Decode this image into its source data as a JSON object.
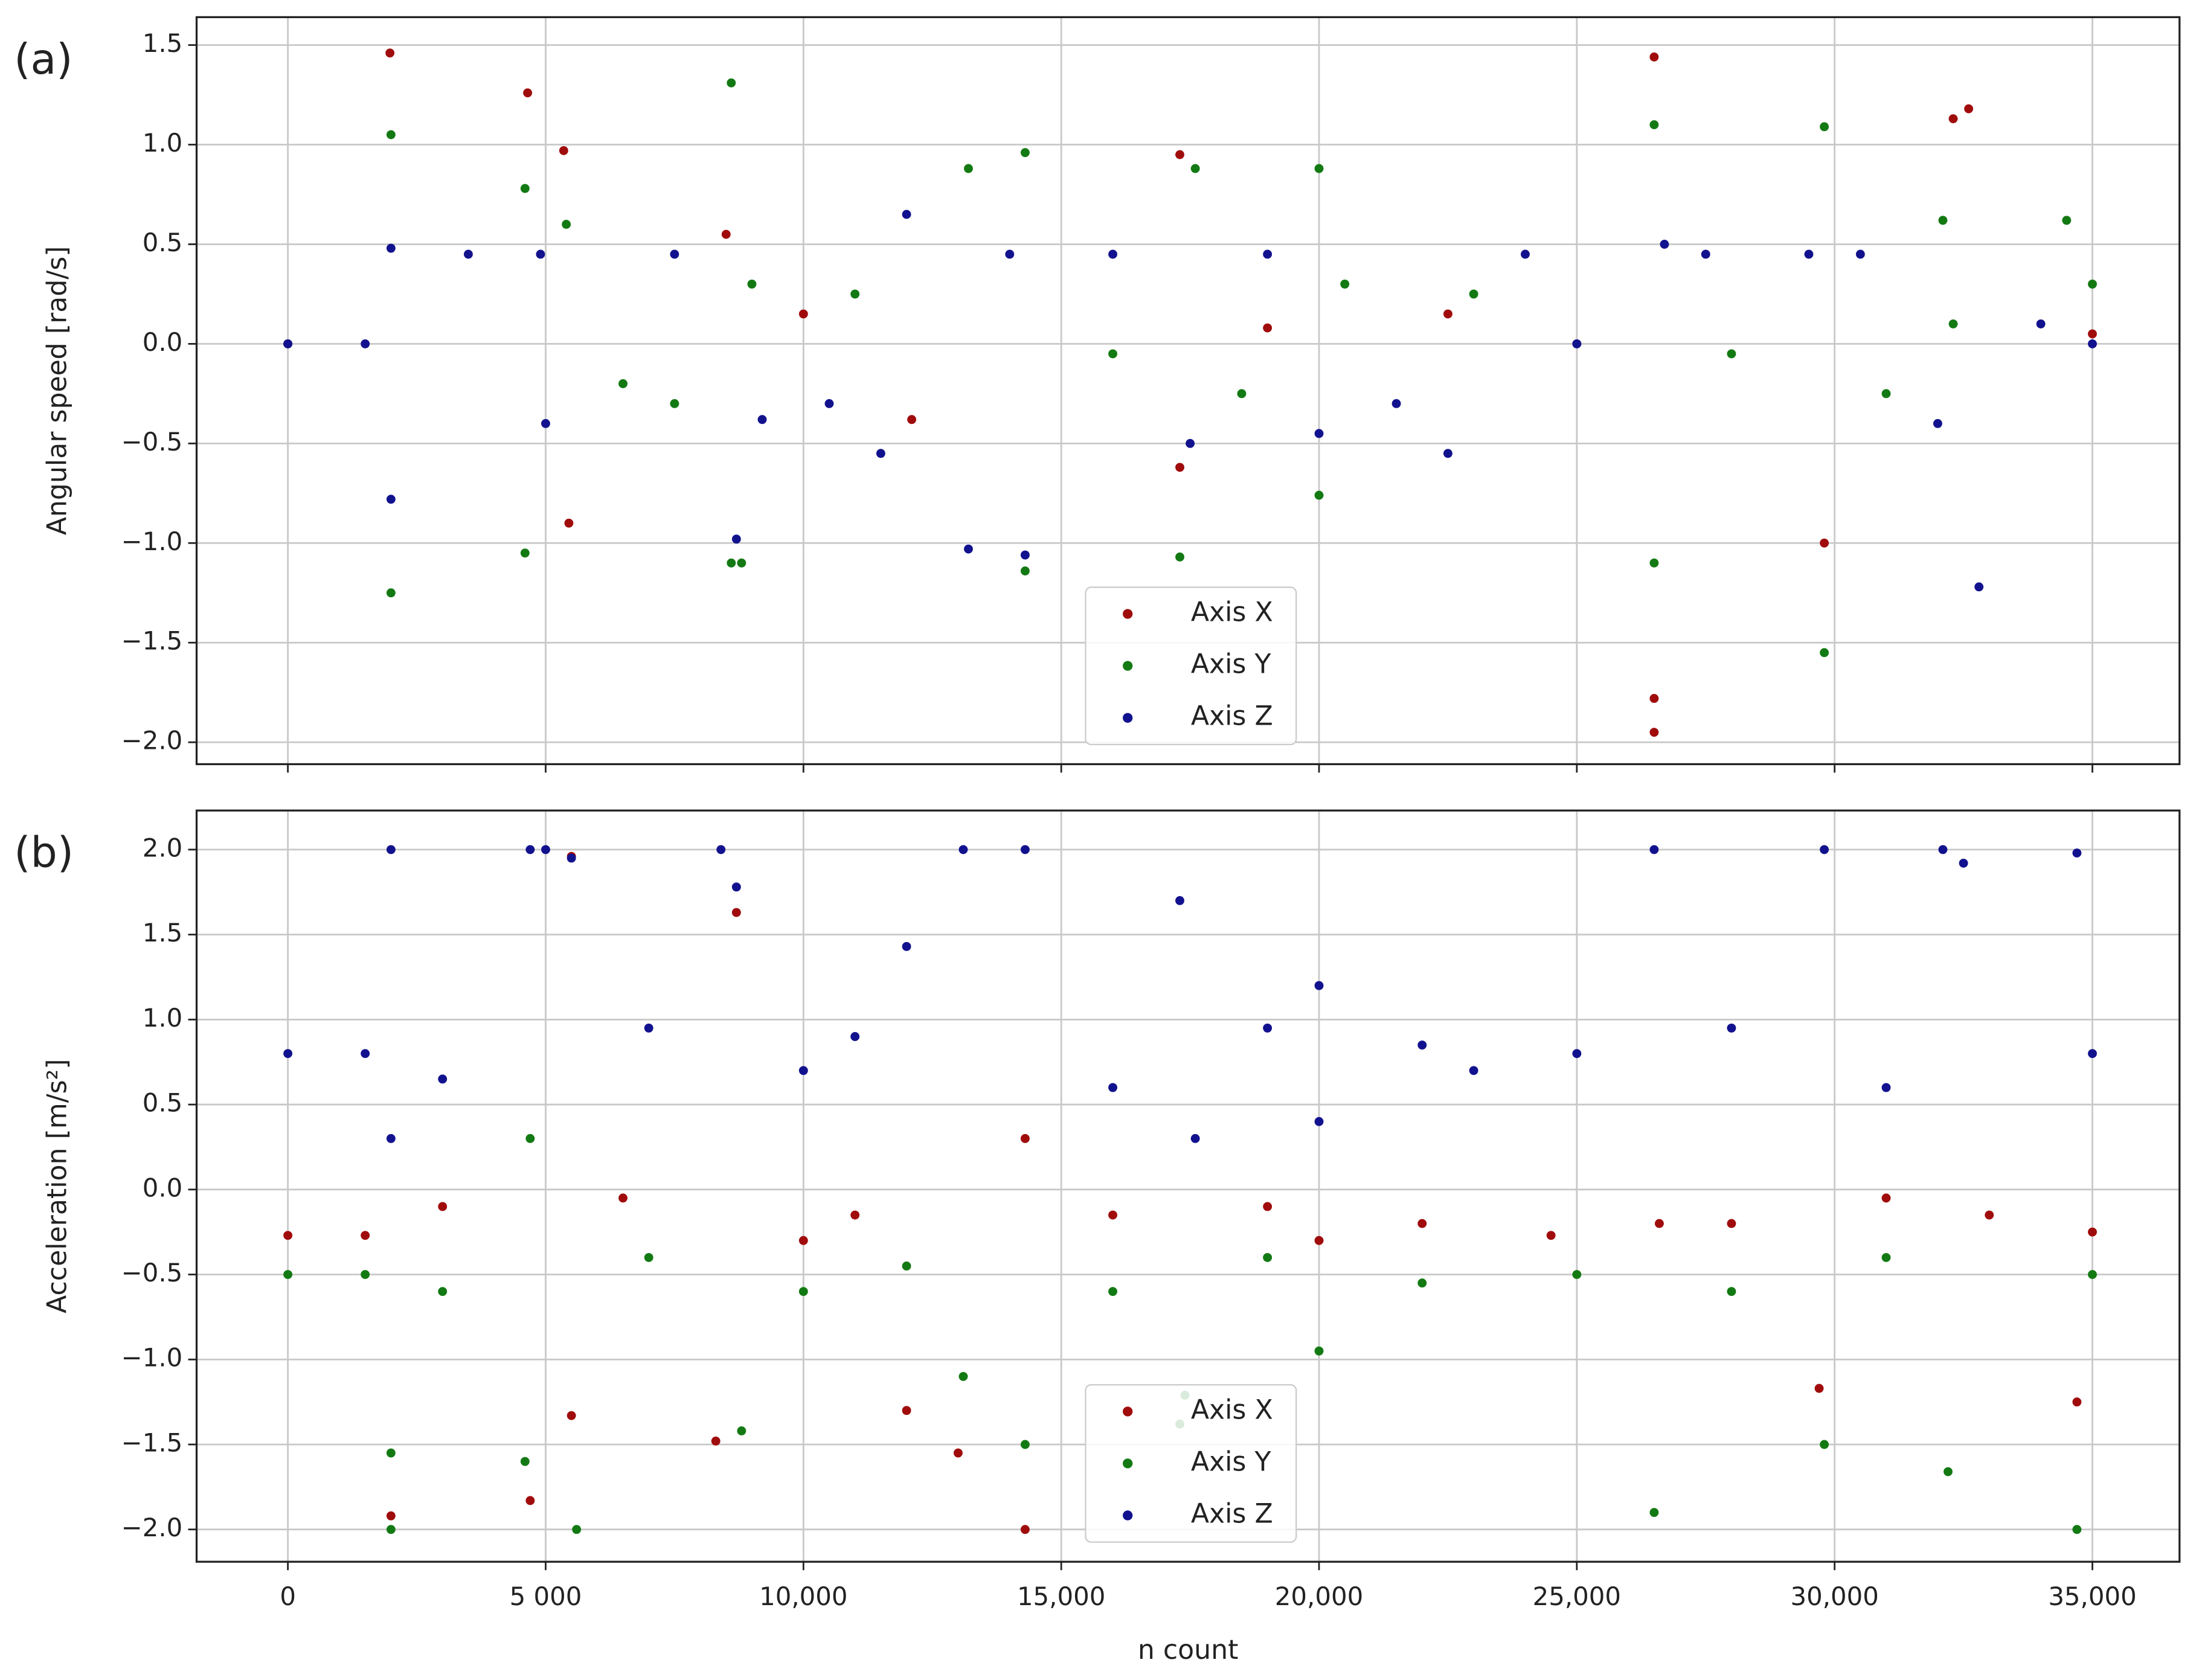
{
  "chart_data": [
    {
      "type": "scatter",
      "title": "(a)",
      "ylabel": "Angular speed [rad/s]",
      "xlim": [
        -1770,
        36690
      ],
      "ylim": [
        -2.11,
        1.64
      ],
      "yticks": [
        {
          "value": -2,
          "label": "−2.0"
        },
        {
          "value": -1.5,
          "label": "−1.5"
        },
        {
          "value": -1,
          "label": "−1.0"
        },
        {
          "value": -0.5,
          "label": "−0.5"
        },
        {
          "value": 0,
          "label": "0.0"
        },
        0.5,
        {
          "value": 1,
          "label": "1.0"
        },
        1.5
      ],
      "grid": true,
      "legend": "lower center",
      "series": [
        {
          "name": "Axis X",
          "color": "#a00c0c",
          "x": [
            1980,
            4650,
            5350,
            5450,
            17300,
            17300,
            26500,
            26500,
            26500,
            32300,
            32600,
            29800,
            8500,
            12100,
            19000,
            22500,
            0,
            10000,
            25000,
            35000
          ],
          "values": [
            1.46,
            1.26,
            0.97,
            -0.9,
            0.95,
            -0.62,
            1.44,
            -1.95,
            -1.78,
            1.13,
            1.18,
            -1.0,
            0.55,
            -0.38,
            0.08,
            0.15,
            0,
            0.15,
            0,
            0.05
          ]
        },
        {
          "name": "Axis Y",
          "color": "#137a13",
          "x": [
            2000,
            2000,
            4600,
            4600,
            5400,
            8600,
            8600,
            8800,
            13200,
            14300,
            14300,
            17300,
            17600,
            20000,
            20000,
            26500,
            26500,
            29800,
            29800,
            32100,
            32300,
            34500,
            6500,
            7500,
            9000,
            11000,
            16000,
            18500,
            20500,
            23000,
            28000,
            31000,
            0,
            35000
          ],
          "values": [
            -1.25,
            1.05,
            -1.05,
            0.78,
            0.6,
            1.31,
            -1.1,
            -1.1,
            0.88,
            0.96,
            -1.14,
            -1.07,
            0.88,
            0.88,
            -0.76,
            1.1,
            -1.1,
            1.09,
            -1.55,
            0.62,
            0.1,
            0.62,
            -0.2,
            -0.3,
            0.3,
            0.25,
            -0.05,
            -0.25,
            0.3,
            0.25,
            -0.05,
            -0.25,
            0,
            0.3
          ]
        },
        {
          "name": "Axis Z",
          "color": "#12128f",
          "x": [
            0,
            1500,
            2000,
            2000,
            3500,
            4900,
            5000,
            7500,
            8700,
            9200,
            10500,
            11500,
            12000,
            13200,
            14000,
            14300,
            16000,
            17500,
            19000,
            20000,
            21500,
            22500,
            24000,
            25000,
            26700,
            27500,
            29500,
            30500,
            32000,
            32800,
            34000,
            35000
          ],
          "values": [
            0,
            0,
            0.48,
            -0.78,
            0.45,
            0.45,
            -0.4,
            0.45,
            -0.98,
            -0.38,
            -0.3,
            -0.55,
            0.65,
            -1.03,
            0.45,
            -1.06,
            0.45,
            -0.5,
            0.45,
            -0.45,
            -0.3,
            -0.55,
            0.45,
            0,
            0.5,
            0.45,
            0.45,
            0.45,
            -0.4,
            -1.22,
            0.1,
            0
          ]
        }
      ]
    },
    {
      "type": "scatter",
      "title": "(b)",
      "ylabel": "Acceleration [m/s²]",
      "xlabel": "n count",
      "xlim": [
        -1770,
        36690
      ],
      "ylim": [
        -2.19,
        2.23
      ],
      "xticks": [
        0,
        {
          "value": 5000,
          "label": "5 000"
        },
        {
          "value": 10000,
          "label": "10,000"
        },
        {
          "value": 15000,
          "label": "15,000"
        },
        {
          "value": 20000,
          "label": "20,000"
        },
        {
          "value": 25000,
          "label": "25,000"
        },
        {
          "value": 30000,
          "label": "30,000"
        },
        {
          "value": 35000,
          "label": "35,000"
        }
      ],
      "yticks": [
        {
          "value": -2,
          "label": "−2.0"
        },
        {
          "value": -1.5,
          "label": "−1.5"
        },
        {
          "value": -1,
          "label": "−1.0"
        },
        {
          "value": -0.5,
          "label": "−0.5"
        },
        {
          "value": 0,
          "label": "0.0"
        },
        0.5,
        {
          "value": 1,
          "label": "1.0"
        },
        1.5,
        {
          "value": 2,
          "label": "2.0"
        }
      ],
      "grid": true,
      "legend": "lower center",
      "series": [
        {
          "name": "Axis X",
          "color": "#a00c0c",
          "x": [
            0,
            1500,
            2000,
            4700,
            5500,
            5500,
            8300,
            8700,
            12000,
            13000,
            14300,
            14300,
            20000,
            26600,
            29700,
            34700,
            3000,
            6500,
            10000,
            11000,
            16000,
            19000,
            22000,
            24500,
            28000,
            31000,
            33000,
            35000
          ],
          "values": [
            -0.27,
            -0.27,
            -1.92,
            -1.83,
            -1.33,
            1.96,
            -1.48,
            1.63,
            -1.3,
            -1.55,
            -2.0,
            0.3,
            -0.3,
            -0.2,
            -1.17,
            -1.25,
            -0.1,
            -0.05,
            -0.3,
            -0.15,
            -0.15,
            -0.1,
            -0.2,
            -0.27,
            -0.2,
            -0.05,
            -0.15,
            -0.25
          ]
        },
        {
          "name": "Axis Y",
          "color": "#137a13",
          "x": [
            0,
            1500,
            2000,
            2000,
            4600,
            5600,
            8800,
            13100,
            14300,
            17300,
            17400,
            20000,
            26500,
            29800,
            32200,
            34700,
            3000,
            7000,
            10000,
            12000,
            16000,
            19000,
            22000,
            25000,
            28000,
            31000,
            35000,
            4700
          ],
          "values": [
            -0.5,
            -0.5,
            -2.0,
            -1.55,
            -1.6,
            -2.0,
            -1.42,
            -1.1,
            -1.5,
            -1.38,
            -1.21,
            -0.95,
            -1.9,
            -1.5,
            -1.66,
            -2.0,
            -0.6,
            -0.4,
            -0.6,
            -0.45,
            -0.6,
            -0.4,
            -0.55,
            -0.5,
            -0.6,
            -0.4,
            -0.5,
            0.3
          ]
        },
        {
          "name": "Axis Z",
          "color": "#12128f",
          "x": [
            0,
            1500,
            2000,
            2000,
            4700,
            5000,
            5500,
            8700,
            8400,
            12000,
            13100,
            14300,
            17300,
            17600,
            20000,
            20000,
            22000,
            25000,
            26500,
            29800,
            32100,
            32500,
            34700,
            3000,
            7000,
            10000,
            11000,
            16000,
            19000,
            23000,
            28000,
            31000,
            35000
          ],
          "values": [
            0.8,
            0.8,
            2.0,
            0.3,
            2.0,
            2.0,
            1.95,
            1.78,
            2.0,
            1.43,
            2.0,
            2.0,
            1.7,
            0.3,
            1.2,
            0.4,
            0.85,
            0.8,
            2.0,
            2.0,
            2.0,
            1.92,
            1.98,
            0.65,
            0.95,
            0.7,
            0.9,
            0.6,
            0.95,
            0.7,
            0.95,
            0.6,
            0.8
          ]
        }
      ]
    }
  ]
}
